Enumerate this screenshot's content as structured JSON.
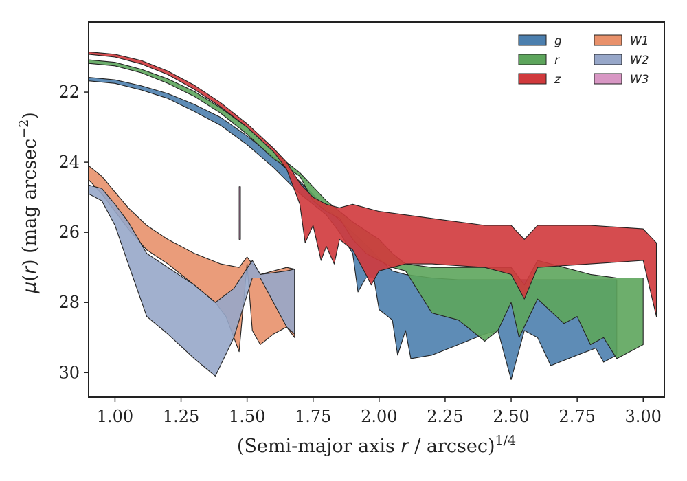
{
  "chart_data": {
    "type": "area",
    "xlabel": "(Semi-major axis r / arcsec)^1/4",
    "ylabel": "μ(r) (mag arcsec^−2)",
    "xlim": [
      0.9,
      3.08
    ],
    "ylim": [
      30.7,
      20.0
    ],
    "xticks": [
      "1.00",
      "1.25",
      "1.50",
      "1.75",
      "2.00",
      "2.25",
      "2.50",
      "2.75",
      "3.00"
    ],
    "yticks": [
      "22",
      "24",
      "26",
      "28",
      "30"
    ],
    "legend_location": "top-right",
    "grid": false,
    "series": [
      {
        "name": "g",
        "color": "#4c7fae",
        "upper": [
          [
            0.9,
            21.58
          ],
          [
            1.0,
            21.65
          ],
          [
            1.1,
            21.82
          ],
          [
            1.2,
            22.04
          ],
          [
            1.3,
            22.35
          ],
          [
            1.4,
            22.72
          ],
          [
            1.5,
            23.25
          ],
          [
            1.6,
            23.85
          ],
          [
            1.7,
            24.55
          ],
          [
            1.8,
            25.3
          ],
          [
            1.9,
            26.0
          ],
          [
            1.97,
            26.5
          ],
          [
            2.0,
            26.75
          ],
          [
            2.05,
            27.1
          ],
          [
            2.1,
            27.2
          ],
          [
            2.2,
            27.3
          ],
          [
            2.3,
            27.35
          ],
          [
            2.4,
            27.35
          ],
          [
            2.45,
            27.35
          ],
          [
            2.5,
            27.35
          ],
          [
            2.6,
            27.35
          ],
          [
            2.7,
            27.35
          ],
          [
            2.8,
            27.35
          ],
          [
            2.88,
            27.35
          ],
          [
            2.9,
            27.35
          ]
        ],
        "lower": [
          [
            0.9,
            21.68
          ],
          [
            1.0,
            21.75
          ],
          [
            1.1,
            21.94
          ],
          [
            1.2,
            22.18
          ],
          [
            1.3,
            22.55
          ],
          [
            1.4,
            22.95
          ],
          [
            1.5,
            23.5
          ],
          [
            1.6,
            24.15
          ],
          [
            1.7,
            24.9
          ],
          [
            1.8,
            25.5
          ],
          [
            1.85,
            26.0
          ],
          [
            1.9,
            26.6
          ],
          [
            1.92,
            27.7
          ],
          [
            1.95,
            27.3
          ],
          [
            1.98,
            27.3
          ],
          [
            2.0,
            28.2
          ],
          [
            2.05,
            28.5
          ],
          [
            2.07,
            29.5
          ],
          [
            2.1,
            28.8
          ],
          [
            2.12,
            29.6
          ],
          [
            2.2,
            29.5
          ],
          [
            2.3,
            29.2
          ],
          [
            2.4,
            28.9
          ],
          [
            2.45,
            28.8
          ],
          [
            2.5,
            30.2
          ],
          [
            2.55,
            28.8
          ],
          [
            2.6,
            29.0
          ],
          [
            2.65,
            29.8
          ],
          [
            2.75,
            29.5
          ],
          [
            2.82,
            29.3
          ],
          [
            2.85,
            29.7
          ],
          [
            2.9,
            29.5
          ]
        ]
      },
      {
        "name": "r",
        "color": "#5da55c",
        "upper": [
          [
            0.9,
            21.08
          ],
          [
            1.0,
            21.15
          ],
          [
            1.1,
            21.35
          ],
          [
            1.2,
            21.62
          ],
          [
            1.3,
            21.98
          ],
          [
            1.4,
            22.45
          ],
          [
            1.5,
            23.0
          ],
          [
            1.6,
            23.7
          ],
          [
            1.7,
            24.3
          ],
          [
            1.75,
            24.7
          ],
          [
            1.8,
            25.1
          ],
          [
            1.9,
            25.7
          ],
          [
            2.0,
            26.2
          ],
          [
            2.05,
            26.6
          ],
          [
            2.1,
            26.9
          ],
          [
            2.2,
            27.0
          ],
          [
            2.3,
            27.0
          ],
          [
            2.4,
            27.0
          ],
          [
            2.5,
            27.0
          ],
          [
            2.55,
            27.5
          ],
          [
            2.6,
            26.8
          ],
          [
            2.7,
            27.0
          ],
          [
            2.8,
            27.2
          ],
          [
            2.9,
            27.3
          ],
          [
            3.0,
            27.3
          ]
        ],
        "lower": [
          [
            0.9,
            21.18
          ],
          [
            1.0,
            21.25
          ],
          [
            1.1,
            21.45
          ],
          [
            1.2,
            21.75
          ],
          [
            1.3,
            22.12
          ],
          [
            1.4,
            22.6
          ],
          [
            1.5,
            23.2
          ],
          [
            1.6,
            23.9
          ],
          [
            1.7,
            24.4
          ],
          [
            1.75,
            25.1
          ],
          [
            1.8,
            25.4
          ],
          [
            1.85,
            25.6
          ],
          [
            1.9,
            26.2
          ],
          [
            1.95,
            26.6
          ],
          [
            2.0,
            26.8
          ],
          [
            2.05,
            27.0
          ],
          [
            2.1,
            27.1
          ],
          [
            2.2,
            28.3
          ],
          [
            2.3,
            28.5
          ],
          [
            2.4,
            29.1
          ],
          [
            2.45,
            28.8
          ],
          [
            2.5,
            28.0
          ],
          [
            2.53,
            29.0
          ],
          [
            2.6,
            27.9
          ],
          [
            2.7,
            28.6
          ],
          [
            2.75,
            28.4
          ],
          [
            2.8,
            29.2
          ],
          [
            2.85,
            29.0
          ],
          [
            2.9,
            29.6
          ],
          [
            3.0,
            29.2
          ]
        ]
      },
      {
        "name": "z",
        "color": "#d0393c",
        "upper": [
          [
            0.9,
            20.85
          ],
          [
            1.0,
            20.92
          ],
          [
            1.1,
            21.1
          ],
          [
            1.2,
            21.4
          ],
          [
            1.3,
            21.8
          ],
          [
            1.4,
            22.3
          ],
          [
            1.5,
            22.9
          ],
          [
            1.6,
            23.6
          ],
          [
            1.65,
            24.0
          ],
          [
            1.7,
            24.6
          ],
          [
            1.75,
            25.0
          ],
          [
            1.8,
            25.2
          ],
          [
            1.85,
            25.3
          ],
          [
            1.9,
            25.2
          ],
          [
            2.0,
            25.4
          ],
          [
            2.2,
            25.6
          ],
          [
            2.4,
            25.8
          ],
          [
            2.5,
            25.8
          ],
          [
            2.55,
            26.2
          ],
          [
            2.6,
            25.8
          ],
          [
            2.8,
            25.8
          ],
          [
            3.0,
            25.9
          ],
          [
            3.05,
            26.3
          ]
        ],
        "lower": [
          [
            0.9,
            20.92
          ],
          [
            1.0,
            21.0
          ],
          [
            1.1,
            21.2
          ],
          [
            1.2,
            21.5
          ],
          [
            1.3,
            21.92
          ],
          [
            1.4,
            22.42
          ],
          [
            1.5,
            23.0
          ],
          [
            1.6,
            23.7
          ],
          [
            1.65,
            24.2
          ],
          [
            1.7,
            25.2
          ],
          [
            1.72,
            26.3
          ],
          [
            1.75,
            25.8
          ],
          [
            1.78,
            26.8
          ],
          [
            1.8,
            26.4
          ],
          [
            1.83,
            26.9
          ],
          [
            1.85,
            26.2
          ],
          [
            1.9,
            26.5
          ],
          [
            1.95,
            27.2
          ],
          [
            1.97,
            27.5
          ],
          [
            2.0,
            27.1
          ],
          [
            2.1,
            26.9
          ],
          [
            2.2,
            26.9
          ],
          [
            2.4,
            27.0
          ],
          [
            2.5,
            27.2
          ],
          [
            2.55,
            27.9
          ],
          [
            2.6,
            27.0
          ],
          [
            2.8,
            26.9
          ],
          [
            3.0,
            26.8
          ],
          [
            3.05,
            28.4
          ]
        ]
      },
      {
        "name": "W1",
        "color": "#e8916b",
        "upper": [
          [
            0.9,
            24.1
          ],
          [
            0.95,
            24.4
          ],
          [
            1.0,
            24.85
          ],
          [
            1.05,
            25.3
          ],
          [
            1.12,
            25.8
          ],
          [
            1.2,
            26.2
          ],
          [
            1.3,
            26.6
          ],
          [
            1.4,
            26.9
          ],
          [
            1.47,
            27.0
          ],
          [
            1.5,
            26.7
          ],
          [
            1.55,
            27.2
          ],
          [
            1.6,
            27.1
          ],
          [
            1.65,
            27.0
          ],
          [
            1.68,
            27.05
          ]
        ],
        "lower": [
          [
            0.9,
            24.5
          ],
          [
            0.95,
            24.9
          ],
          [
            1.0,
            25.4
          ],
          [
            1.05,
            25.9
          ],
          [
            1.12,
            26.5
          ],
          [
            1.2,
            26.9
          ],
          [
            1.3,
            27.5
          ],
          [
            1.38,
            28.0
          ],
          [
            1.42,
            28.4
          ],
          [
            1.47,
            29.4
          ],
          [
            1.5,
            26.9
          ],
          [
            1.52,
            28.8
          ],
          [
            1.55,
            29.2
          ],
          [
            1.6,
            28.9
          ],
          [
            1.65,
            28.7
          ],
          [
            1.68,
            29.0
          ]
        ]
      },
      {
        "name": "W2",
        "color": "#97a7c9",
        "upper": [
          [
            0.9,
            24.65
          ],
          [
            0.95,
            24.75
          ],
          [
            1.0,
            25.2
          ],
          [
            1.05,
            25.7
          ],
          [
            1.12,
            26.6
          ],
          [
            1.2,
            27.0
          ],
          [
            1.3,
            27.5
          ],
          [
            1.38,
            28.0
          ],
          [
            1.45,
            27.6
          ],
          [
            1.52,
            26.8
          ],
          [
            1.55,
            27.2
          ],
          [
            1.6,
            27.15
          ],
          [
            1.65,
            27.1
          ],
          [
            1.68,
            27.05
          ]
        ],
        "lower": [
          [
            0.9,
            24.9
          ],
          [
            0.95,
            25.1
          ],
          [
            1.0,
            25.8
          ],
          [
            1.05,
            26.9
          ],
          [
            1.12,
            28.4
          ],
          [
            1.2,
            28.9
          ],
          [
            1.3,
            29.6
          ],
          [
            1.38,
            30.1
          ],
          [
            1.45,
            29.0
          ],
          [
            1.52,
            27.3
          ],
          [
            1.55,
            27.3
          ],
          [
            1.6,
            28.0
          ],
          [
            1.65,
            28.7
          ],
          [
            1.68,
            28.9
          ]
        ]
      },
      {
        "name": "W3",
        "color": "#d897c4",
        "upper": [
          [
            1.47,
            24.7
          ],
          [
            1.475,
            24.7
          ]
        ],
        "lower": [
          [
            1.47,
            26.2
          ],
          [
            1.475,
            26.2
          ]
        ]
      }
    ],
    "legend_labels": [
      "g",
      "r",
      "z",
      "W1",
      "W2",
      "W3"
    ]
  }
}
